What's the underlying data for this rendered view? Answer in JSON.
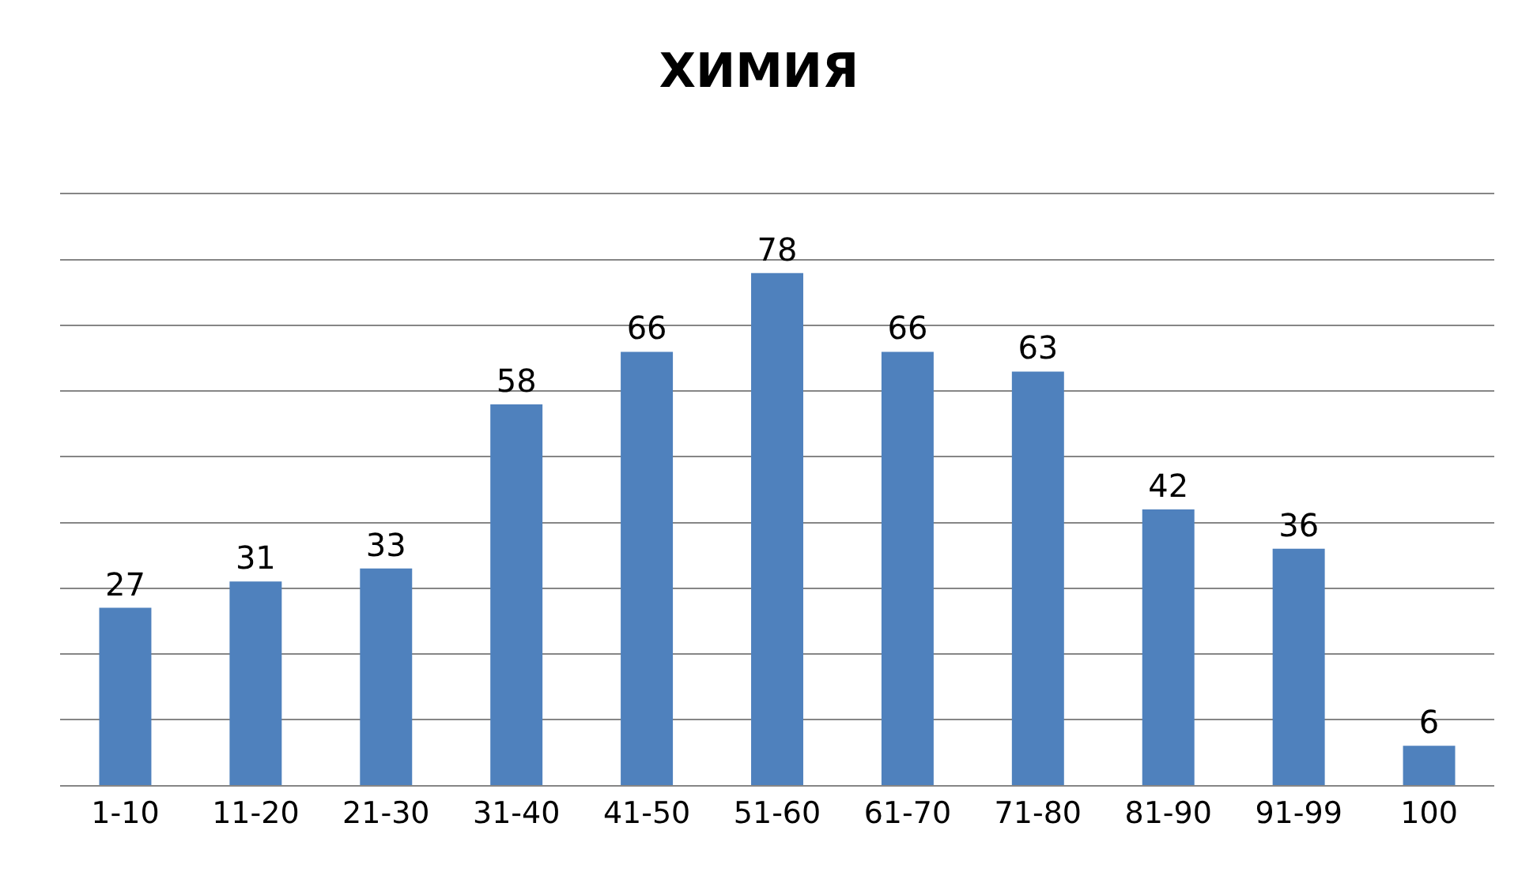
{
  "chart_data": {
    "type": "bar",
    "title": "ХИМИЯ",
    "categories": [
      "1-10",
      "11-20",
      "21-30",
      "31-40",
      "41-50",
      "51-60",
      "61-70",
      "71-80",
      "81-90",
      "91-99",
      "100"
    ],
    "values": [
      27,
      31,
      33,
      58,
      66,
      78,
      66,
      63,
      42,
      36,
      6
    ],
    "color": "#4f81bd",
    "data_labels": true,
    "grid": "y",
    "tick_labels": "x",
    "ylim": [
      0,
      90
    ],
    "yticks": [
      {
        "value": 0,
        "label": null
      },
      {
        "value": 10,
        "label": null
      },
      {
        "value": 20,
        "label": null
      },
      {
        "value": 30,
        "label": null
      },
      {
        "value": 40,
        "label": null
      },
      {
        "value": 50,
        "label": null
      },
      {
        "value": 60,
        "label": null
      },
      {
        "value": 70,
        "label": null
      },
      {
        "value": 80,
        "label": null
      },
      {
        "value": 90,
        "label": null
      }
    ]
  }
}
